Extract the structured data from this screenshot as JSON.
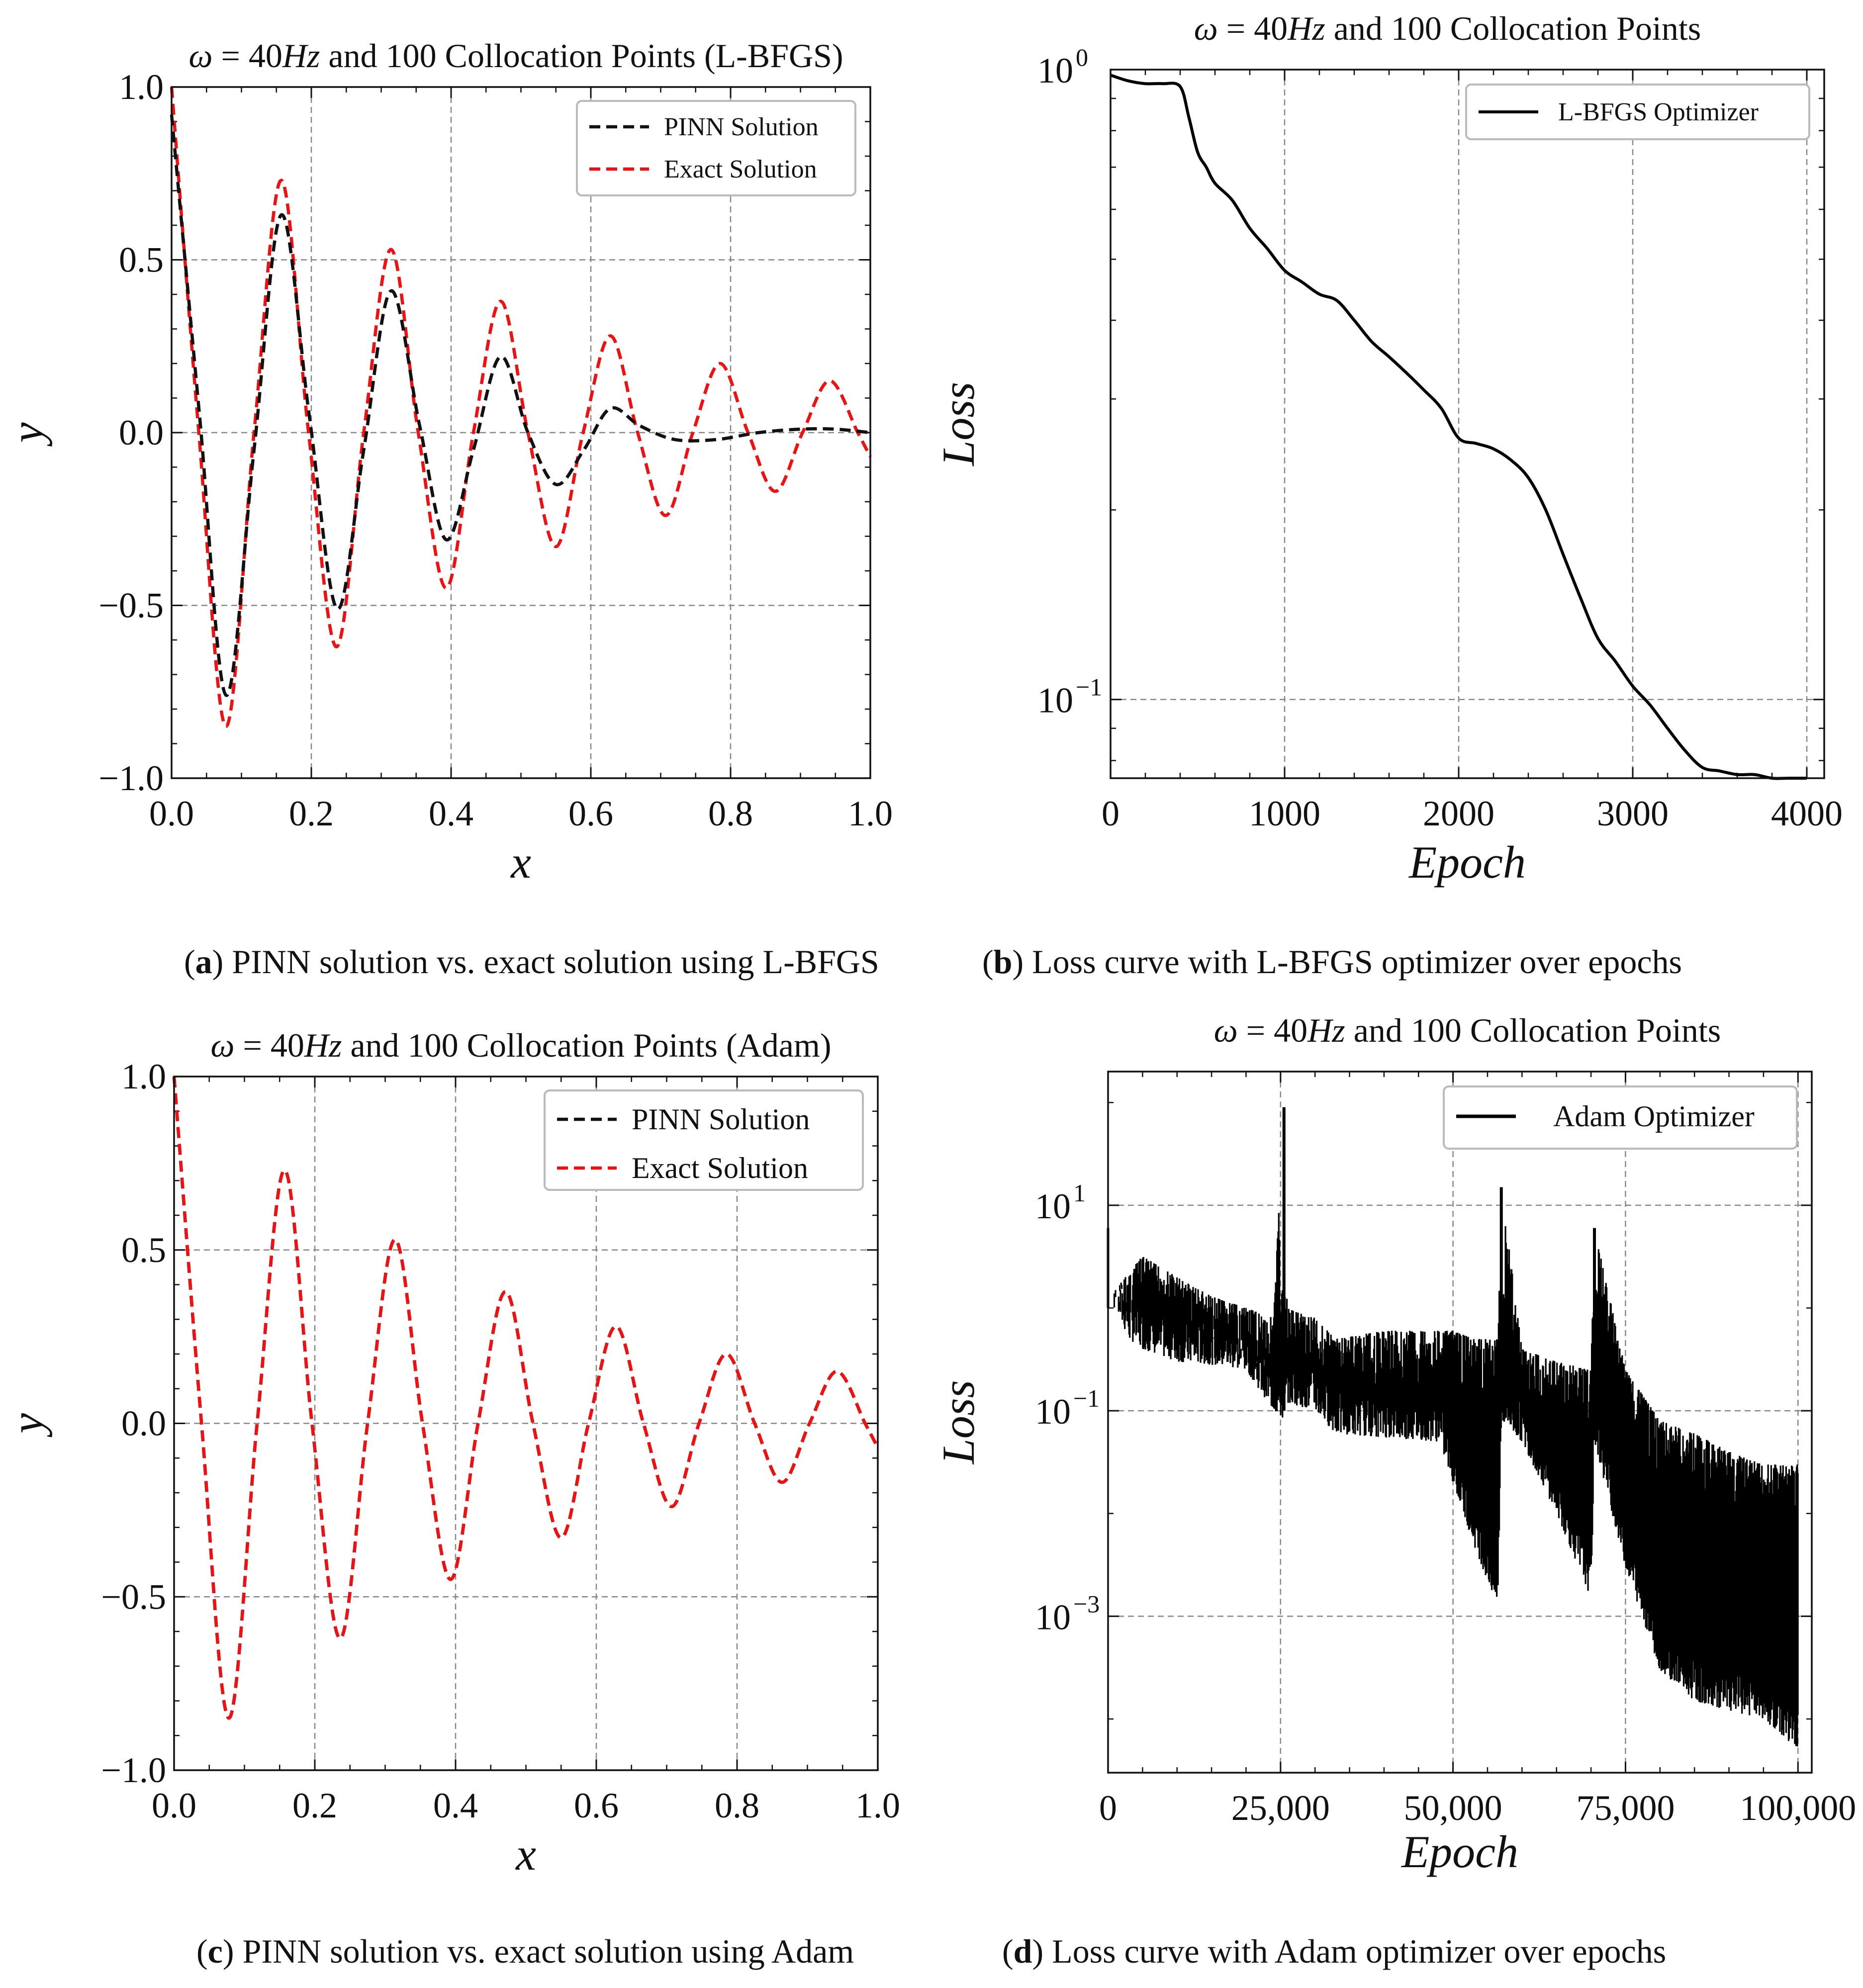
{
  "colors": {
    "pinn": "#111111",
    "exact": "#ee1111",
    "loss": "#000000",
    "grid": "#888888"
  },
  "panels": [
    {
      "id": "a",
      "title": "ω = 40Hz and 100 Collocation Points (L-BFGS)",
      "title_parts": [
        "ω",
        " = 40",
        "Hz",
        " and 100 Collocation Points (L-BFGS)"
      ],
      "caption_letter": "a",
      "caption_text": "PINN solution vs. exact solution using L-BFGS",
      "xlabel": "x",
      "ylabel": "y",
      "legend": [
        "PINN Solution",
        "Exact Solution"
      ],
      "xticks": [
        "0.0",
        "0.2",
        "0.4",
        "0.6",
        "0.8",
        "1.0"
      ],
      "yticks": [
        "−1.0",
        "−0.5",
        "0.0",
        "0.5",
        "1.0"
      ]
    },
    {
      "id": "b",
      "title": "ω = 40Hz and 100 Collocation Points",
      "title_parts": [
        "ω",
        " = 40",
        "Hz",
        " and 100 Collocation Points"
      ],
      "caption_letter": "b",
      "caption_text": "Loss curve with L-BFGS optimizer over epochs",
      "xlabel": "Epoch",
      "ylabel": "Loss",
      "legend": [
        "L-BFGS Optimizer"
      ],
      "xticks": [
        "0",
        "1000",
        "2000",
        "3000",
        "4000"
      ],
      "yticks": [
        {
          "base": "10",
          "exp": "−1"
        },
        {
          "base": "10",
          "exp": "0"
        }
      ]
    },
    {
      "id": "c",
      "title": "ω = 40Hz and 100 Collocation Points (Adam)",
      "title_parts": [
        "ω",
        " = 40",
        "Hz",
        " and 100 Collocation Points (Adam)"
      ],
      "caption_letter": "c",
      "caption_text": "PINN solution vs. exact solution using Adam",
      "xlabel": "x",
      "ylabel": "y",
      "legend": [
        "PINN Solution",
        "Exact Solution"
      ],
      "xticks": [
        "0.0",
        "0.2",
        "0.4",
        "0.6",
        "0.8",
        "1.0"
      ],
      "yticks": [
        "−1.0",
        "−0.5",
        "0.0",
        "0.5",
        "1.0"
      ]
    },
    {
      "id": "d",
      "title": "ω = 40Hz and 100 Collocation Points",
      "title_parts": [
        "ω",
        " = 40",
        "Hz",
        " and 100 Collocation Points"
      ],
      "caption_letter": "d",
      "caption_text": "Loss curve with Adam optimizer over epochs",
      "xlabel": "Epoch",
      "ylabel": "Loss",
      "legend": [
        "Adam Optimizer"
      ],
      "xticks": [
        "0",
        "25,000",
        "50,000",
        "75,000",
        "100,000"
      ],
      "yticks": [
        {
          "base": "10",
          "exp": "−3"
        },
        {
          "base": "10",
          "exp": "−1"
        },
        {
          "base": "10",
          "exp": "1"
        }
      ]
    }
  ],
  "chart_data": [
    {
      "id": "a",
      "type": "line",
      "title": "ω = 40Hz and 100 Collocation Points (L-BFGS)",
      "xlabel": "x",
      "ylabel": "y",
      "xlim": [
        0,
        1
      ],
      "ylim": [
        -1,
        1
      ],
      "series": [
        {
          "name": "PINN Solution",
          "style": "dashed",
          "color": "#111111",
          "x": [
            0.0,
            0.04,
            0.078,
            0.118,
            0.157,
            0.197,
            0.237,
            0.275,
            0.314,
            0.355,
            0.393,
            0.432,
            0.471,
            0.51,
            0.55,
            0.59,
            0.628,
            0.67,
            0.72,
            0.78,
            0.84,
            0.9,
            0.95,
            1.0
          ],
          "y": [
            0.92,
            0.05,
            -0.76,
            -0.05,
            0.63,
            0.05,
            -0.51,
            -0.05,
            0.41,
            0.02,
            -0.31,
            -0.05,
            0.22,
            0.0,
            -0.15,
            -0.05,
            0.07,
            0.02,
            -0.02,
            -0.02,
            0.0,
            0.01,
            0.01,
            0.0
          ]
        },
        {
          "name": "Exact Solution",
          "style": "dashed",
          "color": "#ee1111",
          "x": [
            0.0,
            0.039,
            0.078,
            0.118,
            0.157,
            0.196,
            0.236,
            0.275,
            0.314,
            0.353,
            0.393,
            0.432,
            0.471,
            0.51,
            0.55,
            0.589,
            0.628,
            0.667,
            0.707,
            0.746,
            0.785,
            0.825,
            0.864,
            0.903,
            0.942,
            0.982,
            1.0
          ],
          "y": [
            1.0,
            0.0,
            -0.85,
            0.0,
            0.73,
            0.0,
            -0.62,
            0.0,
            0.53,
            0.0,
            -0.45,
            0.0,
            0.38,
            0.0,
            -0.33,
            0.0,
            0.28,
            0.0,
            -0.24,
            0.0,
            0.2,
            0.0,
            -0.17,
            0.0,
            0.15,
            0.0,
            -0.07
          ]
        }
      ],
      "legend_position": "top-right"
    },
    {
      "id": "b",
      "type": "line",
      "title": "ω = 40Hz and 100 Collocation Points",
      "xlabel": "Epoch",
      "ylabel": "Loss",
      "yscale": "log",
      "xlim": [
        0,
        4100
      ],
      "ylim": [
        0.075,
        1.0
      ],
      "series": [
        {
          "name": "L-BFGS Optimizer",
          "color": "#000000",
          "x": [
            0,
            100,
            200,
            300,
            400,
            450,
            500,
            550,
            600,
            700,
            800,
            900,
            1000,
            1100,
            1200,
            1300,
            1400,
            1500,
            1600,
            1700,
            1800,
            1900,
            2000,
            2100,
            2200,
            2300,
            2400,
            2500,
            2600,
            2700,
            2800,
            2900,
            3000,
            3100,
            3200,
            3300,
            3400,
            3500,
            3600,
            3700,
            3800,
            3900,
            4000
          ],
          "y": [
            0.98,
            0.96,
            0.95,
            0.95,
            0.94,
            0.84,
            0.74,
            0.7,
            0.66,
            0.62,
            0.56,
            0.52,
            0.48,
            0.46,
            0.44,
            0.43,
            0.4,
            0.37,
            0.35,
            0.33,
            0.31,
            0.29,
            0.26,
            0.255,
            0.25,
            0.24,
            0.225,
            0.2,
            0.17,
            0.145,
            0.125,
            0.115,
            0.105,
            0.098,
            0.09,
            0.083,
            0.078,
            0.077,
            0.076,
            0.076,
            0.075,
            0.075,
            0.075
          ]
        }
      ],
      "legend_position": "top-right"
    },
    {
      "id": "c",
      "type": "line",
      "title": "ω = 40Hz and 100 Collocation Points (Adam)",
      "xlabel": "x",
      "ylabel": "y",
      "xlim": [
        0,
        1
      ],
      "ylim": [
        -1,
        1
      ],
      "series": [
        {
          "name": "PINN Solution",
          "style": "dashed",
          "color": "#111111",
          "x": [
            0.0,
            0.039,
            0.078,
            0.118,
            0.157,
            0.196,
            0.236,
            0.275,
            0.314,
            0.353,
            0.393,
            0.432,
            0.471,
            0.51,
            0.55,
            0.589,
            0.628,
            0.667,
            0.707,
            0.746,
            0.785,
            0.825,
            0.864,
            0.903,
            0.942,
            0.982,
            1.0
          ],
          "y": [
            1.0,
            0.0,
            -0.85,
            0.0,
            0.73,
            0.0,
            -0.62,
            0.0,
            0.53,
            0.0,
            -0.45,
            0.0,
            0.38,
            0.0,
            -0.33,
            0.0,
            0.28,
            0.0,
            -0.24,
            0.0,
            0.2,
            0.0,
            -0.17,
            0.0,
            0.15,
            0.0,
            -0.07
          ]
        },
        {
          "name": "Exact Solution",
          "style": "dashed",
          "color": "#ee1111",
          "x": [
            0.0,
            0.039,
            0.078,
            0.118,
            0.157,
            0.196,
            0.236,
            0.275,
            0.314,
            0.353,
            0.393,
            0.432,
            0.471,
            0.51,
            0.55,
            0.589,
            0.628,
            0.667,
            0.707,
            0.746,
            0.785,
            0.825,
            0.864,
            0.903,
            0.942,
            0.982,
            1.0
          ],
          "y": [
            1.0,
            0.0,
            -0.85,
            0.0,
            0.73,
            0.0,
            -0.62,
            0.0,
            0.53,
            0.0,
            -0.45,
            0.0,
            0.38,
            0.0,
            -0.33,
            0.0,
            0.28,
            0.0,
            -0.24,
            0.0,
            0.2,
            0.0,
            -0.17,
            0.0,
            0.15,
            0.0,
            -0.07
          ]
        }
      ],
      "legend_position": "top-right"
    },
    {
      "id": "d",
      "type": "area",
      "title": "ω = 40Hz and 100 Collocation Points",
      "xlabel": "Epoch",
      "ylabel": "Loss",
      "yscale": "log",
      "xlim": [
        0,
        102000
      ],
      "ylim": [
        3e-05,
        200
      ],
      "series": [
        {
          "name": "Adam Optimizer",
          "color": "#000000",
          "x": [
            0,
            1000,
            3000,
            5000,
            10000,
            15000,
            20000,
            24000,
            25500,
            26000,
            30000,
            33000,
            40000,
            48000,
            50000,
            53000,
            56500,
            57000,
            60000,
            65000,
            70000,
            70500,
            75000,
            80000,
            85000,
            90000,
            95000,
            100000
          ],
          "upper": [
            1.0,
            1.5,
            2.2,
            3.2,
            2.0,
            1.3,
            1.0,
            0.8,
            90,
            1.0,
            0.8,
            0.5,
            0.6,
            0.6,
            0.6,
            0.5,
            0.5,
            15,
            0.4,
            0.3,
            0.25,
            6,
            0.25,
            0.08,
            0.06,
            0.04,
            0.03,
            0.03
          ],
          "lower": [
            1.0,
            1.0,
            0.5,
            0.4,
            0.3,
            0.28,
            0.25,
            0.1,
            0.08,
            0.12,
            0.1,
            0.06,
            0.055,
            0.05,
            0.02,
            0.005,
            0.0012,
            0.08,
            0.05,
            0.01,
            0.0015,
            0.05,
            0.003,
            0.0003,
            0.00015,
            0.00012,
            0.0001,
            5e-05
          ]
        }
      ],
      "spikes": [
        {
          "x": 25500,
          "y": 90
        },
        {
          "x": 57000,
          "y": 15
        },
        {
          "x": 70500,
          "y": 6
        }
      ],
      "legend_position": "top-right"
    }
  ]
}
